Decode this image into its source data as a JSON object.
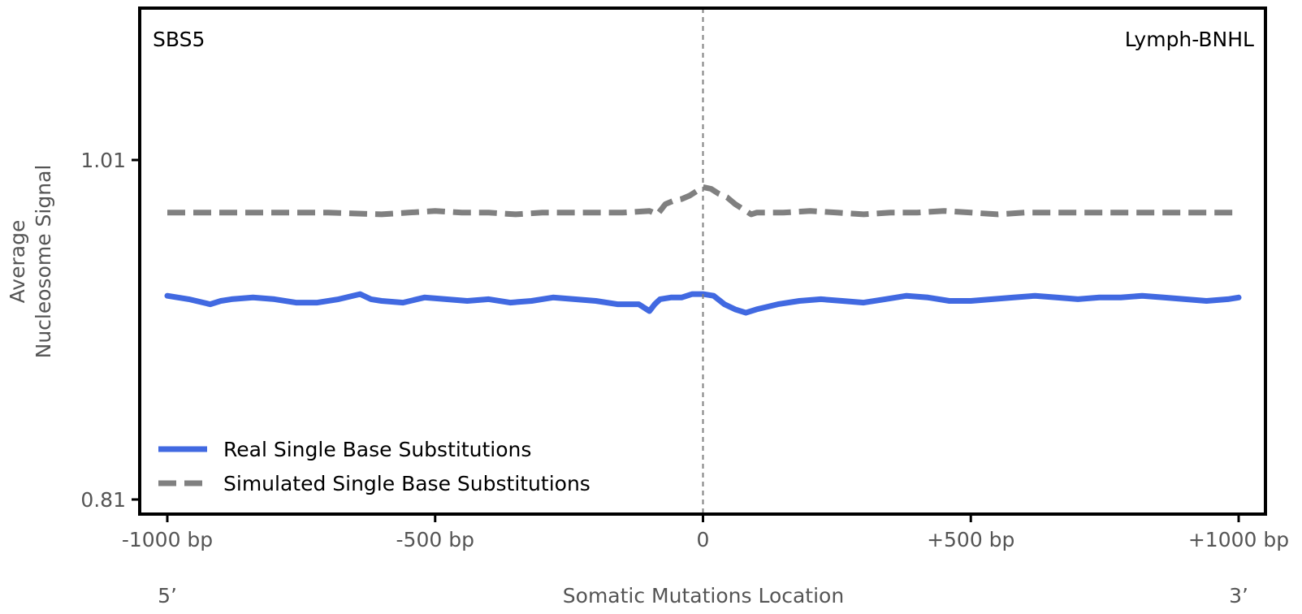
{
  "chart_data": {
    "type": "line",
    "title": "",
    "signature_label": "SBS5",
    "cancer_type_label": "Lymph-BNHL",
    "xlabel": "Somatic Mutations Location",
    "ylabel": [
      "Average",
      "Nucleosome Signal"
    ],
    "x_end_labels": {
      "left": "5’",
      "right": "3’"
    },
    "xlim": [
      -1000,
      1000
    ],
    "ylim": [
      0.81,
      1.01
    ],
    "x_ticks": [
      {
        "value": -1000,
        "label": "-1000 bp"
      },
      {
        "value": -500,
        "label": "-500 bp"
      },
      {
        "value": 0,
        "label": "0"
      },
      {
        "value": 500,
        "label": "+500 bp"
      },
      {
        "value": 1000,
        "label": "+1000 bp"
      }
    ],
    "y_ticks": [
      {
        "value": 1.01,
        "label": "1.01"
      },
      {
        "value": 0.81,
        "label": "0.81"
      }
    ],
    "center_line": {
      "x": 0,
      "color": "#808080",
      "style": "dashed"
    },
    "legend_position": "lower-left",
    "series": [
      {
        "name": "Real Single Base Substitutions",
        "color": "#4169e1",
        "style": "solid",
        "x": [
          -1000,
          -960,
          -920,
          -900,
          -880,
          -840,
          -800,
          -760,
          -720,
          -680,
          -640,
          -620,
          -600,
          -560,
          -520,
          -480,
          -440,
          -400,
          -360,
          -320,
          -280,
          -240,
          -200,
          -160,
          -120,
          -100,
          -90,
          -80,
          -60,
          -40,
          -20,
          0,
          20,
          40,
          60,
          80,
          100,
          140,
          180,
          220,
          260,
          300,
          340,
          380,
          420,
          460,
          500,
          540,
          580,
          620,
          660,
          700,
          740,
          780,
          820,
          860,
          900,
          940,
          980,
          1000
        ],
        "values": [
          0.93,
          0.928,
          0.925,
          0.927,
          0.928,
          0.929,
          0.928,
          0.926,
          0.926,
          0.928,
          0.931,
          0.928,
          0.927,
          0.926,
          0.929,
          0.928,
          0.927,
          0.928,
          0.926,
          0.927,
          0.929,
          0.928,
          0.927,
          0.925,
          0.925,
          0.921,
          0.925,
          0.928,
          0.929,
          0.929,
          0.931,
          0.931,
          0.93,
          0.925,
          0.922,
          0.92,
          0.922,
          0.925,
          0.927,
          0.928,
          0.927,
          0.926,
          0.928,
          0.93,
          0.929,
          0.927,
          0.927,
          0.928,
          0.929,
          0.93,
          0.929,
          0.928,
          0.929,
          0.929,
          0.93,
          0.929,
          0.928,
          0.927,
          0.928,
          0.929
        ]
      },
      {
        "name": "Simulated Single Base Substitutions",
        "color": "#808080",
        "style": "dashed",
        "x": [
          -1000,
          -900,
          -800,
          -700,
          -600,
          -550,
          -500,
          -450,
          -400,
          -350,
          -300,
          -250,
          -200,
          -150,
          -100,
          -85,
          -70,
          -55,
          -40,
          -25,
          -10,
          0,
          15,
          30,
          45,
          60,
          75,
          90,
          100,
          150,
          200,
          250,
          300,
          350,
          400,
          450,
          500,
          550,
          600,
          650,
          700,
          750,
          800,
          850,
          900,
          950,
          1000
        ],
        "values": [
          0.979,
          0.979,
          0.979,
          0.979,
          0.978,
          0.979,
          0.98,
          0.979,
          0.979,
          0.978,
          0.979,
          0.979,
          0.979,
          0.979,
          0.98,
          0.978,
          0.984,
          0.986,
          0.987,
          0.989,
          0.992,
          0.994,
          0.993,
          0.99,
          0.988,
          0.984,
          0.981,
          0.978,
          0.979,
          0.979,
          0.98,
          0.979,
          0.978,
          0.979,
          0.979,
          0.98,
          0.979,
          0.978,
          0.979,
          0.979,
          0.979,
          0.979,
          0.979,
          0.979,
          0.979,
          0.979,
          0.979
        ]
      }
    ]
  }
}
